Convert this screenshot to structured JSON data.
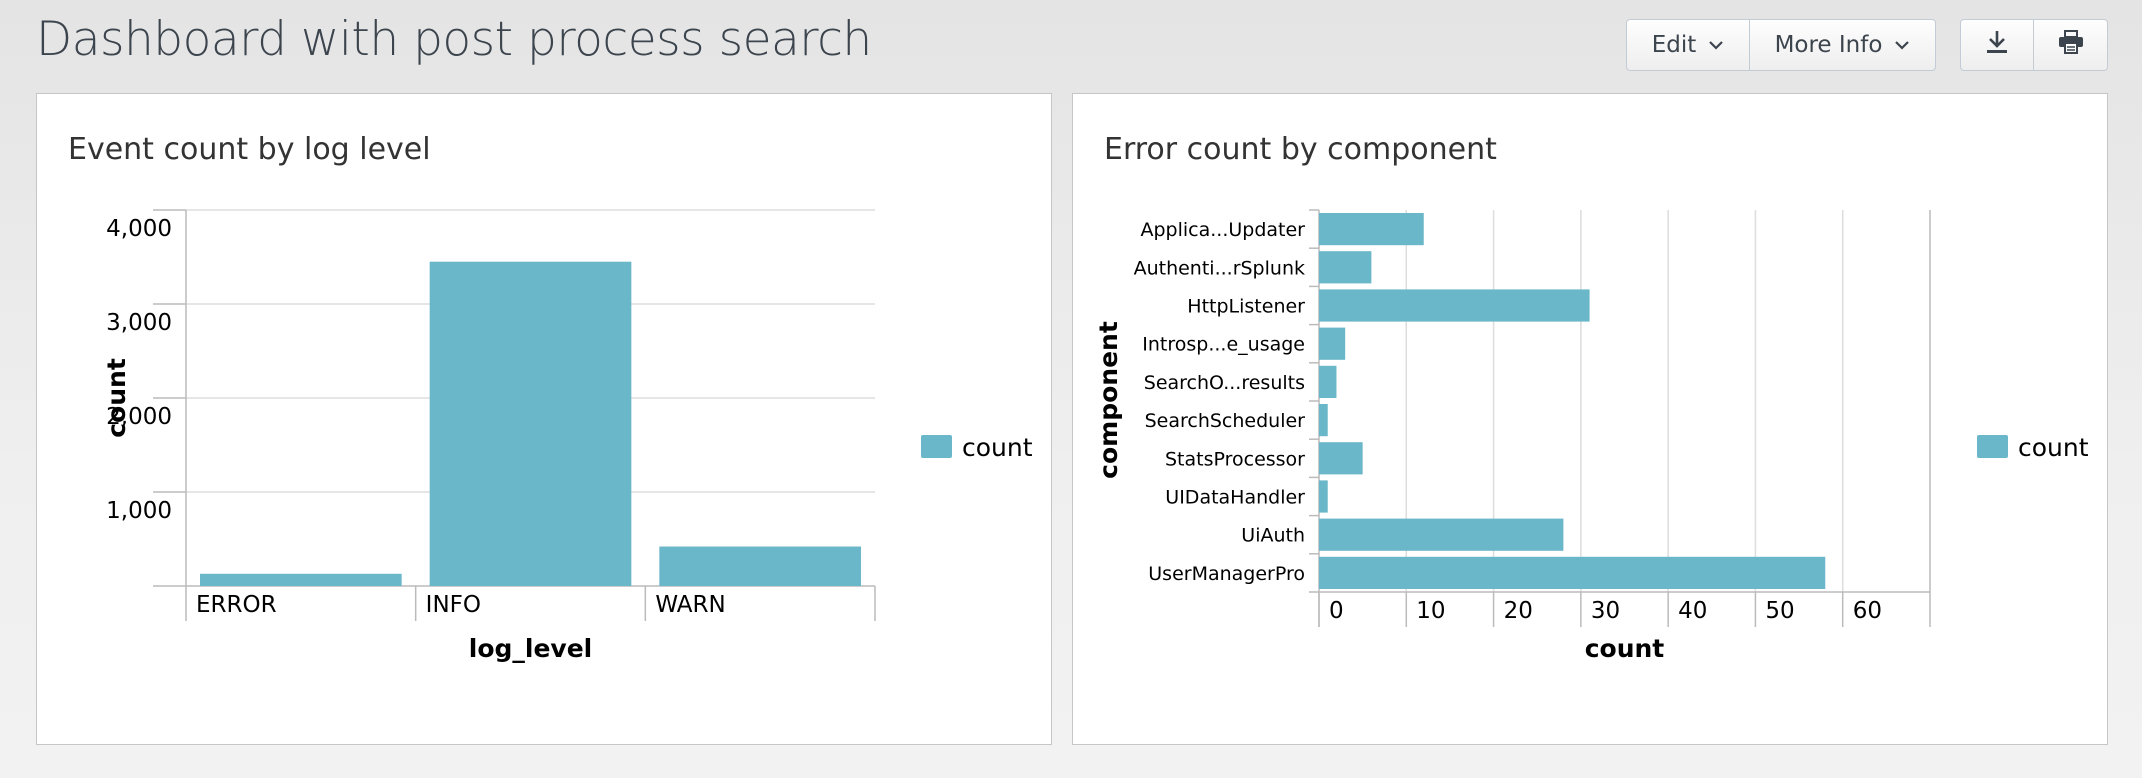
{
  "header": {
    "title": "Dashboard with post process search",
    "edit_label": "Edit",
    "more_info_label": "More Info",
    "download_icon": "download-icon",
    "print_icon": "print-icon"
  },
  "panels": [
    {
      "title": "Event count by log level",
      "chart_data": {
        "type": "bar",
        "orientation": "vertical",
        "categories": [
          "ERROR",
          "INFO",
          "WARN"
        ],
        "series": [
          {
            "name": "count",
            "values": [
              130,
              3450,
              420
            ]
          }
        ],
        "xlabel": "log_level",
        "ylabel": "count",
        "ylim": [
          0,
          4000
        ],
        "yticks": [
          1000,
          2000,
          3000,
          4000
        ],
        "ytick_labels": [
          "1,000",
          "2,000",
          "3,000",
          "4,000"
        ],
        "grid": true,
        "legend": "right",
        "color": "#6ab7c9"
      }
    },
    {
      "title": "Error count by component",
      "chart_data": {
        "type": "bar",
        "orientation": "horizontal",
        "categories": [
          "Applica...Updater",
          "Authenti...rSplunk",
          "HttpListener",
          "Introsp...e_usage",
          "SearchO...results",
          "SearchScheduler",
          "StatsProcessor",
          "UIDataHandler",
          "UiAuth",
          "UserManagerPro"
        ],
        "series": [
          {
            "name": "count",
            "values": [
              12,
              6,
              31,
              3,
              2,
              1,
              5,
              1,
              28,
              58
            ]
          }
        ],
        "xlabel": "count",
        "ylabel": "component",
        "xlim": [
          0,
          70
        ],
        "xticks": [
          0,
          10,
          20,
          30,
          40,
          50,
          60
        ],
        "xtick_labels": [
          "0",
          "10",
          "20",
          "30",
          "40",
          "50",
          "60"
        ],
        "grid": true,
        "legend": "right",
        "color": "#6ab7c9"
      }
    }
  ]
}
